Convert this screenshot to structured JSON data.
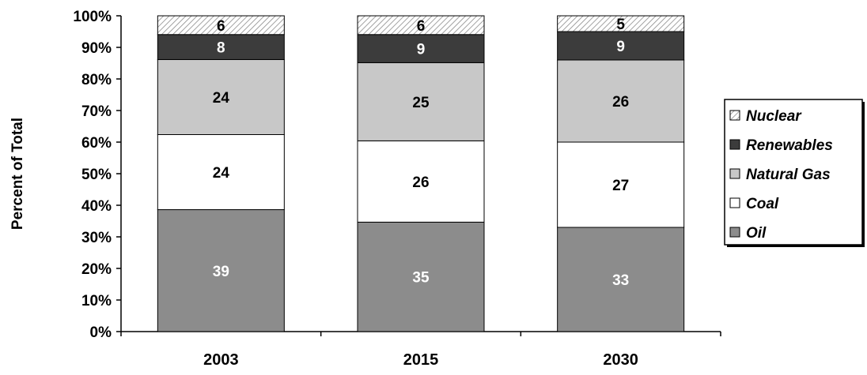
{
  "chart_data": {
    "type": "bar",
    "stacked": true,
    "title": "",
    "xlabel": "",
    "ylabel": "Percent of Total",
    "ylim": [
      0,
      100
    ],
    "y_ticks": [
      "0%",
      "10%",
      "20%",
      "30%",
      "40%",
      "50%",
      "60%",
      "70%",
      "80%",
      "90%",
      "100%"
    ],
    "grid": false,
    "legend_position": "right",
    "categories": [
      "2003",
      "2015",
      "2030"
    ],
    "series": [
      {
        "name": "Oil",
        "values": [
          39,
          35,
          33
        ],
        "color": "#8c8c8c",
        "pattern": "solid",
        "label_color": "#ffffff"
      },
      {
        "name": "Coal",
        "values": [
          24,
          26,
          27
        ],
        "color": "#ffffff",
        "pattern": "solid",
        "label_color": "#000000"
      },
      {
        "name": "Natural Gas",
        "values": [
          24,
          25,
          26
        ],
        "color": "#c8c8c8",
        "pattern": "solid",
        "label_color": "#000000"
      },
      {
        "name": "Renewables",
        "values": [
          8,
          9,
          9
        ],
        "color": "#3c3c3c",
        "pattern": "solid",
        "label_color": "#ffffff"
      },
      {
        "name": "Nuclear",
        "values": [
          6,
          6,
          5
        ],
        "color": "#ffffff",
        "pattern": "hatch",
        "label_color": "#000000"
      }
    ],
    "legend_order": [
      "Nuclear",
      "Renewables",
      "Natural Gas",
      "Coal",
      "Oil"
    ]
  }
}
